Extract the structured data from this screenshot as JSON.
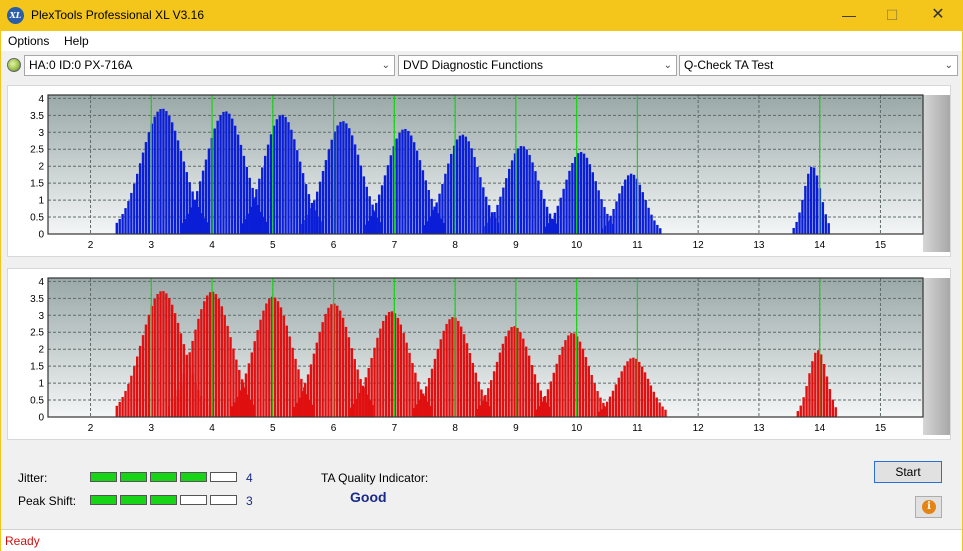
{
  "window": {
    "title": "PlexTools Professional XL V3.16"
  },
  "menu": {
    "items": [
      "Options",
      "Help"
    ]
  },
  "toolbar": {
    "drive": "HA:0 ID:0  PX-716A",
    "function": "DVD Diagnostic Functions",
    "test": "Q-Check TA Test"
  },
  "charts": {
    "x_ticks": [
      2,
      3,
      4,
      5,
      6,
      7,
      8,
      9,
      10,
      11,
      12,
      13,
      14,
      15
    ],
    "y_ticks": [
      0,
      0.5,
      1,
      1.5,
      2,
      2.5,
      3,
      3.5,
      4
    ],
    "green_markers": [
      3,
      4,
      5,
      6,
      7,
      8,
      9,
      10,
      11,
      14
    ]
  },
  "chart_data": [
    {
      "type": "bar",
      "title": "",
      "xlabel": "",
      "ylabel": "",
      "xlim": [
        1.3,
        15.7
      ],
      "ylim": [
        0,
        4.1
      ],
      "grid": true,
      "bar_color": "#0a1ed8",
      "peaks": [
        {
          "x": 3.18,
          "height": 3.7,
          "width": 0.34
        },
        {
          "x": 4.22,
          "height": 3.62,
          "width": 0.32
        },
        {
          "x": 5.15,
          "height": 3.52,
          "width": 0.3
        },
        {
          "x": 6.15,
          "height": 3.33,
          "width": 0.3
        },
        {
          "x": 7.17,
          "height": 3.1,
          "width": 0.3
        },
        {
          "x": 8.12,
          "height": 2.93,
          "width": 0.28
        },
        {
          "x": 9.1,
          "height": 2.6,
          "width": 0.27
        },
        {
          "x": 10.07,
          "height": 2.42,
          "width": 0.26
        },
        {
          "x": 10.9,
          "height": 1.78,
          "width": 0.22
        },
        {
          "x": 13.88,
          "height": 2.0,
          "width": 0.14
        }
      ]
    },
    {
      "type": "bar",
      "title": "",
      "xlabel": "",
      "ylabel": "",
      "xlim": [
        1.3,
        15.7
      ],
      "ylim": [
        0,
        4.1
      ],
      "grid": true,
      "bar_color": "#e01010",
      "peaks": [
        {
          "x": 3.18,
          "height": 3.72,
          "width": 0.34
        },
        {
          "x": 4.0,
          "height": 3.7,
          "width": 0.32
        },
        {
          "x": 5.0,
          "height": 3.55,
          "width": 0.31
        },
        {
          "x": 6.0,
          "height": 3.35,
          "width": 0.3
        },
        {
          "x": 6.95,
          "height": 3.12,
          "width": 0.3
        },
        {
          "x": 7.97,
          "height": 2.95,
          "width": 0.29
        },
        {
          "x": 8.97,
          "height": 2.68,
          "width": 0.28
        },
        {
          "x": 9.93,
          "height": 2.48,
          "width": 0.27
        },
        {
          "x": 10.93,
          "height": 1.75,
          "width": 0.26
        },
        {
          "x": 13.97,
          "height": 1.97,
          "width": 0.15
        }
      ]
    }
  ],
  "results": {
    "jitter_label": "Jitter:",
    "jitter_value": "4",
    "jitter_level": 4,
    "peak_shift_label": "Peak Shift:",
    "peak_shift_value": "3",
    "peak_shift_level": 3,
    "meter_max": 5,
    "quality_label": "TA Quality Indicator:",
    "quality_value": "Good"
  },
  "buttons": {
    "start": "Start"
  },
  "status": {
    "text": "Ready"
  },
  "colors": {
    "titlebar": "#f4c61c",
    "meter_on": "#17d417",
    "marker": "#19d419"
  }
}
